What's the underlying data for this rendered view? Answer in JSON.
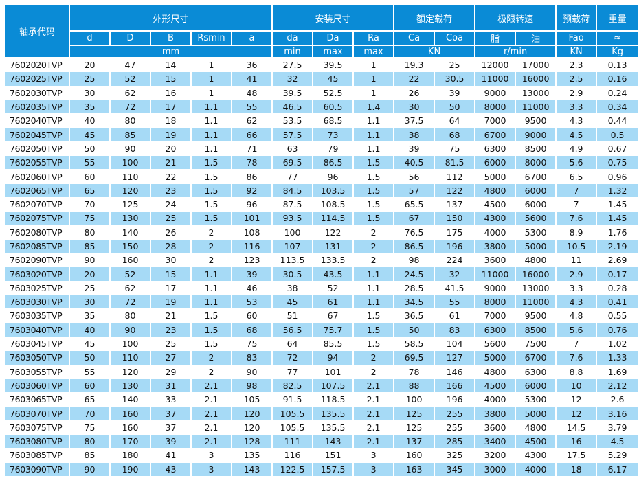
{
  "header": {
    "code": "轴承代码",
    "groups": [
      "外形尺寸",
      "安装尺寸",
      "额定载荷",
      "极限转速",
      "预载荷",
      "重量"
    ],
    "columns": [
      "d",
      "D",
      "B",
      "Rsmin",
      "a",
      "da",
      "Da",
      "Ra",
      "Ca",
      "Coa",
      "脂",
      "油",
      "Fao",
      "≈"
    ],
    "units": [
      "mm",
      "min",
      "max",
      "max",
      "KN",
      "r/min",
      "KN",
      "Kg"
    ]
  },
  "rows": [
    [
      "7602020TVP",
      "20",
      "47",
      "14",
      "1",
      "36",
      "27.5",
      "39.5",
      "1",
      "19.3",
      "25",
      "12000",
      "17000",
      "2.3",
      "0.13"
    ],
    [
      "7602025TVP",
      "25",
      "52",
      "15",
      "1",
      "41",
      "32",
      "45",
      "1",
      "22",
      "30.5",
      "11000",
      "16000",
      "2.5",
      "0.16"
    ],
    [
      "7602030TVP",
      "30",
      "62",
      "16",
      "1",
      "48",
      "39.5",
      "52.5",
      "1",
      "26",
      "39",
      "9000",
      "13000",
      "2.9",
      "0.24"
    ],
    [
      "7602035TVP",
      "35",
      "72",
      "17",
      "1.1",
      "55",
      "46.5",
      "60.5",
      "1.4",
      "30",
      "50",
      "8000",
      "11000",
      "3.3",
      "0.34"
    ],
    [
      "7602040TVP",
      "40",
      "80",
      "18",
      "1.1",
      "62",
      "53.5",
      "68.5",
      "1.1",
      "37.5",
      "64",
      "7000",
      "9500",
      "4.3",
      "0.44"
    ],
    [
      "7602045TVP",
      "45",
      "85",
      "19",
      "1.1",
      "66",
      "57.5",
      "73",
      "1.1",
      "38",
      "68",
      "6700",
      "9000",
      "4.5",
      "0.5"
    ],
    [
      "7602050TVP",
      "50",
      "90",
      "20",
      "1.1",
      "71",
      "63",
      "79",
      "1.1",
      "39",
      "75",
      "6300",
      "8500",
      "4.9",
      "0.67"
    ],
    [
      "7602055TVP",
      "55",
      "100",
      "21",
      "1.5",
      "78",
      "69.5",
      "86.5",
      "1.5",
      "40.5",
      "81.5",
      "6000",
      "8000",
      "5.6",
      "0.75"
    ],
    [
      "7602060TVP",
      "60",
      "110",
      "22",
      "1.5",
      "86",
      "77",
      "96",
      "1.5",
      "56",
      "112",
      "5000",
      "6700",
      "6.5",
      "0.96"
    ],
    [
      "7602065TVP",
      "65",
      "120",
      "23",
      "1.5",
      "92",
      "84.5",
      "103.5",
      "1.5",
      "57",
      "122",
      "4800",
      "6000",
      "7",
      "1.32"
    ],
    [
      "7602070TVP",
      "70",
      "125",
      "24",
      "1.5",
      "96",
      "87.5",
      "108.5",
      "1.5",
      "65.5",
      "137",
      "4500",
      "6000",
      "7",
      "1.45"
    ],
    [
      "7602075TVP",
      "75",
      "130",
      "25",
      "1.5",
      "101",
      "93.5",
      "114.5",
      "1.5",
      "67",
      "150",
      "4300",
      "5600",
      "7.6",
      "1.45"
    ],
    [
      "7602080TVP",
      "80",
      "140",
      "26",
      "2",
      "108",
      "100",
      "122",
      "2",
      "76.5",
      "175",
      "4000",
      "5300",
      "8.9",
      "1.76"
    ],
    [
      "7602085TVP",
      "85",
      "150",
      "28",
      "2",
      "116",
      "107",
      "131",
      "2",
      "86.5",
      "196",
      "3800",
      "5000",
      "10.5",
      "2.19"
    ],
    [
      "7602090TVP",
      "90",
      "160",
      "30",
      "2",
      "123",
      "113.5",
      "133.5",
      "2",
      "98",
      "224",
      "3600",
      "4800",
      "11",
      "2.69"
    ],
    [
      "7603020TVP",
      "20",
      "52",
      "15",
      "1.1",
      "39",
      "30.5",
      "43.5",
      "1.1",
      "24.5",
      "32",
      "11000",
      "16000",
      "2.9",
      "0.17"
    ],
    [
      "7603025TVP",
      "25",
      "62",
      "17",
      "1.1",
      "46",
      "38",
      "52",
      "1.1",
      "28.5",
      "41.5",
      "9000",
      "13000",
      "3.3",
      "0.28"
    ],
    [
      "7603030TVP",
      "30",
      "72",
      "19",
      "1.1",
      "53",
      "45",
      "61",
      "1.1",
      "34.5",
      "55",
      "8000",
      "11000",
      "4.3",
      "0.41"
    ],
    [
      "7603035TVP",
      "35",
      "80",
      "21",
      "1.5",
      "60",
      "51",
      "67",
      "1.5",
      "36.5",
      "61",
      "7000",
      "9500",
      "4.8",
      "0.55"
    ],
    [
      "7603040TVP",
      "40",
      "90",
      "23",
      "1.5",
      "68",
      "56.5",
      "75.7",
      "1.5",
      "50",
      "83",
      "6300",
      "8500",
      "5.6",
      "0.76"
    ],
    [
      "7603045TVP",
      "45",
      "100",
      "25",
      "1.5",
      "75",
      "64",
      "85.5",
      "1.5",
      "58.5",
      "104",
      "5600",
      "7500",
      "7",
      "1.02"
    ],
    [
      "7603050TVP",
      "50",
      "110",
      "27",
      "2",
      "83",
      "72",
      "94",
      "2",
      "69.5",
      "127",
      "5000",
      "6700",
      "7.6",
      "1.33"
    ],
    [
      "7603055TVP",
      "55",
      "120",
      "29",
      "2",
      "90",
      "77",
      "101",
      "2",
      "78",
      "146",
      "4800",
      "6300",
      "8.8",
      "1.69"
    ],
    [
      "7603060TVP",
      "60",
      "130",
      "31",
      "2.1",
      "98",
      "82.5",
      "107.5",
      "2.1",
      "88",
      "166",
      "4500",
      "6000",
      "10",
      "2.12"
    ],
    [
      "7603065TVP",
      "65",
      "140",
      "33",
      "2.1",
      "105",
      "91.5",
      "118.5",
      "2.1",
      "100",
      "196",
      "4000",
      "5300",
      "12",
      "2.6"
    ],
    [
      "7603070TVP",
      "70",
      "160",
      "37",
      "2.1",
      "120",
      "105.5",
      "135.5",
      "2.1",
      "125",
      "255",
      "3800",
      "5000",
      "12",
      "3.16"
    ],
    [
      "7603075TVP",
      "75",
      "160",
      "37",
      "2.1",
      "120",
      "105.5",
      "135.5",
      "2.1",
      "125",
      "255",
      "3600",
      "4800",
      "14.5",
      "3.79"
    ],
    [
      "7603080TVP",
      "80",
      "170",
      "39",
      "2.1",
      "128",
      "111",
      "143",
      "2.1",
      "137",
      "285",
      "3400",
      "4500",
      "16",
      "4.5"
    ],
    [
      "7603085TVP",
      "85",
      "180",
      "41",
      "3",
      "135",
      "116",
      "151",
      "3",
      "160",
      "325",
      "3200",
      "4300",
      "17.5",
      "5.29"
    ],
    [
      "7603090TVP",
      "90",
      "190",
      "43",
      "3",
      "143",
      "122.5",
      "157.5",
      "3",
      "163",
      "345",
      "3000",
      "4000",
      "18",
      "6.17"
    ]
  ],
  "colors": {
    "header_bg": "#0a8bd6",
    "stripe": "#a6daf6"
  }
}
